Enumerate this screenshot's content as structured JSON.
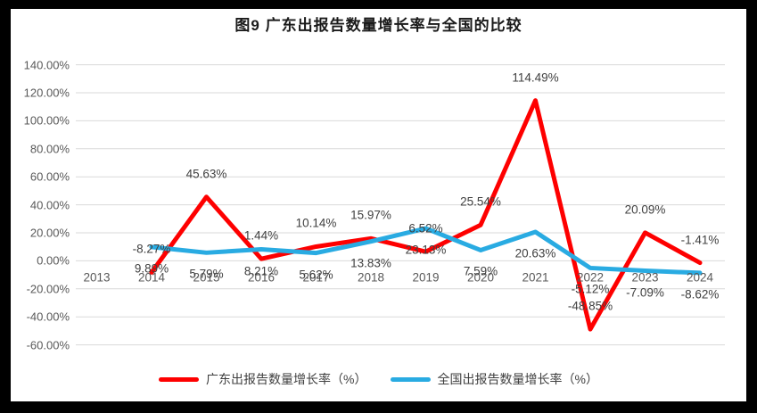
{
  "chart_data": {
    "type": "line",
    "title": "图9  广东出报告数量增长率与全国的比较",
    "categories": [
      "2013",
      "2014",
      "2015",
      "2016",
      "2017",
      "2018",
      "2019",
      "2020",
      "2021",
      "2022",
      "2023",
      "2024"
    ],
    "xlabel": "",
    "ylabel": "",
    "ylim": [
      -60,
      140
    ],
    "y_tick_step": 20,
    "y_ticks": [
      "140.00%",
      "120.00%",
      "100.00%",
      "80.00%",
      "60.00%",
      "40.00%",
      "20.00%",
      "0.00%",
      "-20.00%",
      "-40.00%",
      "-60.00%"
    ],
    "grid": true,
    "legend_position": "bottom",
    "colors": {
      "guangdong_red": "#fe0000",
      "national_blue": "#29abe2",
      "gridline": "#d9d9d9",
      "axis_text": "#595959",
      "label_text": "#404040"
    },
    "series": [
      {
        "name": "广东出报告数量增长率（%）",
        "color": "#fe0000",
        "values": [
          null,
          -8.27,
          45.63,
          1.44,
          10.14,
          15.97,
          6.52,
          25.54,
          114.49,
          -48.85,
          20.09,
          -1.41
        ],
        "labels": [
          null,
          "-8.27%",
          "45.63%",
          "1.44%",
          "10.14%",
          "15.97%",
          "6.52%",
          "25.54%",
          "114.49%",
          "-48.85%",
          "20.09%",
          "-1.41%"
        ]
      },
      {
        "name": "全国出报告数量增长率（%）",
        "color": "#29abe2",
        "values": [
          null,
          9.89,
          5.79,
          8.21,
          5.62,
          13.83,
          23.13,
          7.59,
          20.63,
          -5.12,
          -7.09,
          -8.62
        ],
        "labels": [
          null,
          "9.89%",
          "5.79%",
          "8.21%",
          "5.62%",
          "13.83%",
          "23.13%",
          "7.59%",
          "20.63%",
          "-5.12%",
          "-7.09%",
          "-8.62%"
        ]
      }
    ]
  }
}
